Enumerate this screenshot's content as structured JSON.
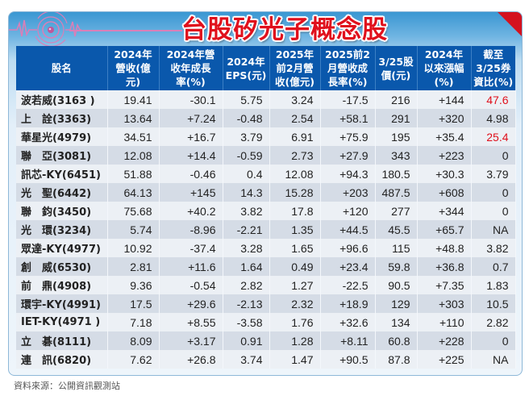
{
  "header": {
    "title": "台股矽光子概念股"
  },
  "table": {
    "columns": [
      "股名",
      "2024年營收(億元)",
      "2024年營收年成長率(%)",
      "2024年EPS(元)",
      "2025年前2月營收(億元)",
      "2025前2月營收成長率(%)",
      "3/25股價(元)",
      "2024年以來漲幅(%)",
      "截至3/25券資比(%)"
    ],
    "column_lines": [
      [
        "股名"
      ],
      [
        "2024年",
        "營收(億",
        "元)"
      ],
      [
        "2024年營",
        "收年成長",
        "率(%)"
      ],
      [
        "2024年",
        "EPS(元)"
      ],
      [
        "2025年",
        "前2月營",
        "收(億元)"
      ],
      [
        "2025前2",
        "月營收成",
        "長率(%)"
      ],
      [
        "3/25股",
        "價(元)"
      ],
      [
        "2024年",
        "以來漲幅",
        "(%)"
      ],
      [
        "截至",
        "3/25券",
        "資比(%)"
      ]
    ],
    "rows": [
      {
        "name": "波若威(3163 )",
        "rev2024": "19.41",
        "growth2024": "-30.1",
        "eps2024": "5.75",
        "rev2025": "3.24",
        "growth2025": "-17.5",
        "price": "216",
        "ytd": "+144",
        "short_ratio": "47.6",
        "highlight": true
      },
      {
        "name": "上　詮(3363)",
        "rev2024": "13.64",
        "growth2024": "+7.24",
        "eps2024": "-0.48",
        "rev2025": "2.54",
        "growth2025": "+58.1",
        "price": "291",
        "ytd": "+320",
        "short_ratio": "4.98",
        "highlight": false
      },
      {
        "name": "華星光(4979)",
        "rev2024": "34.51",
        "growth2024": "+16.7",
        "eps2024": "3.79",
        "rev2025": "6.91",
        "growth2025": "+75.9",
        "price": "195",
        "ytd": "+35.4",
        "short_ratio": "25.4",
        "highlight": true
      },
      {
        "name": "聯　亞(3081)",
        "rev2024": "12.08",
        "growth2024": "+14.4",
        "eps2024": "-0.59",
        "rev2025": "2.73",
        "growth2025": "+27.9",
        "price": "343",
        "ytd": "+223",
        "short_ratio": "0",
        "highlight": false
      },
      {
        "name": "訊芯-KY(6451)",
        "rev2024": "51.88",
        "growth2024": "-0.46",
        "eps2024": "0.4",
        "rev2025": "12.08",
        "growth2025": "+94.3",
        "price": "180.5",
        "ytd": "+30.3",
        "short_ratio": "3.79",
        "highlight": false
      },
      {
        "name": "光　聖(6442)",
        "rev2024": "64.13",
        "growth2024": "+145",
        "eps2024": "14.3",
        "rev2025": "15.28",
        "growth2025": "+203",
        "price": "487.5",
        "ytd": "+608",
        "short_ratio": "0",
        "highlight": false
      },
      {
        "name": "聯　鈞(3450)",
        "rev2024": "75.68",
        "growth2024": "+40.2",
        "eps2024": "3.82",
        "rev2025": "17.8",
        "growth2025": "+120",
        "price": "277",
        "ytd": "+344",
        "short_ratio": "0",
        "highlight": false
      },
      {
        "name": "光　環(3234)",
        "rev2024": "5.74",
        "growth2024": "-8.96",
        "eps2024": "-2.21",
        "rev2025": "1.35",
        "growth2025": "+44.5",
        "price": "45.5",
        "ytd": "+65.7",
        "short_ratio": "NA",
        "highlight": false
      },
      {
        "name": "眾達-KY(4977)",
        "rev2024": "10.92",
        "growth2024": "-37.4",
        "eps2024": "3.28",
        "rev2025": "1.65",
        "growth2025": "+96.6",
        "price": "115",
        "ytd": "+48.8",
        "short_ratio": "3.82",
        "highlight": false
      },
      {
        "name": "創　威(6530)",
        "rev2024": "2.81",
        "growth2024": "+11.6",
        "eps2024": "1.64",
        "rev2025": "0.49",
        "growth2025": "+23.4",
        "price": "59.8",
        "ytd": "+36.8",
        "short_ratio": "0.7",
        "highlight": false
      },
      {
        "name": "前　鼎(4908)",
        "rev2024": "9.36",
        "growth2024": "-0.54",
        "eps2024": "2.82",
        "rev2025": "1.27",
        "growth2025": "-22.5",
        "price": "90.5",
        "ytd": "+7.35",
        "short_ratio": "1.83",
        "highlight": false
      },
      {
        "name": "環宇-KY(4991)",
        "rev2024": "17.5",
        "growth2024": "+29.6",
        "eps2024": "-2.13",
        "rev2025": "2.32",
        "growth2025": "+18.9",
        "price": "129",
        "ytd": "+303",
        "short_ratio": "10.5",
        "highlight": false
      },
      {
        "name": "IET-KY(4971 )",
        "rev2024": "7.18",
        "growth2024": "+8.55",
        "eps2024": "-3.58",
        "rev2025": "1.76",
        "growth2025": "+32.6",
        "price": "134",
        "ytd": "+110",
        "short_ratio": "2.82",
        "highlight": false
      },
      {
        "name": "立　碁(8111)",
        "rev2024": "8.09",
        "growth2024": "+3.17",
        "eps2024": "0.91",
        "rev2025": "1.28",
        "growth2025": "+8.11",
        "price": "60.8",
        "ytd": "+228",
        "short_ratio": "0",
        "highlight": false
      },
      {
        "name": "連　訊(6820)",
        "rev2024": "7.62",
        "growth2024": "+26.8",
        "eps2024": "3.74",
        "rev2025": "1.47",
        "growth2025": "+90.5",
        "price": "87.8",
        "ytd": "+225",
        "short_ratio": "NA",
        "highlight": false
      }
    ]
  },
  "footer": {
    "source": "資料來源：公開資訊觀測站"
  },
  "colors": {
    "header_bg": "#0a58ac",
    "title_red": "#e0101c",
    "row_light": "#ecf0f5",
    "row_dark": "#d5dce6",
    "highlight_red": "#e0101c"
  }
}
